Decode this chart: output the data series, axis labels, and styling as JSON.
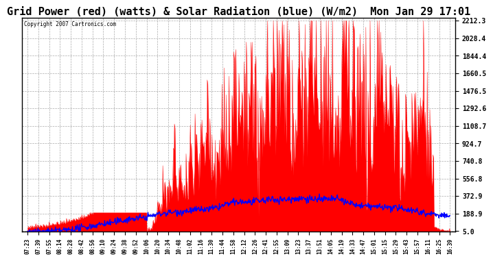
{
  "title": "Grid Power (red) (watts) & Solar Radiation (blue) (W/m2)  Mon Jan 29 17:01",
  "copyright_text": "Copyright 2007 Cartronics.com",
  "yticks": [
    5.0,
    188.9,
    372.9,
    556.8,
    740.8,
    924.7,
    1108.7,
    1292.6,
    1476.5,
    1660.5,
    1844.4,
    2028.4,
    2212.3
  ],
  "ymin": 0,
  "ymax": 2212.3,
  "title_fontsize": 11,
  "bg_color": "#ffffff",
  "plot_bg_color": "#ffffff",
  "grid_color": "#aaaaaa",
  "red_color": "#ff0000",
  "blue_color": "#0000ff",
  "xtick_labels": [
    "07:23",
    "07:39",
    "07:55",
    "08:14",
    "08:28",
    "08:42",
    "08:56",
    "09:10",
    "09:24",
    "09:38",
    "09:52",
    "10:06",
    "10:20",
    "10:34",
    "10:48",
    "11:02",
    "11:16",
    "11:30",
    "11:44",
    "11:58",
    "12:12",
    "12:26",
    "12:41",
    "12:55",
    "13:09",
    "13:23",
    "13:37",
    "13:51",
    "14:05",
    "14:19",
    "14:33",
    "14:47",
    "15:01",
    "15:15",
    "15:29",
    "15:43",
    "15:57",
    "16:11",
    "16:25",
    "16:39"
  ],
  "n_fine": 800
}
